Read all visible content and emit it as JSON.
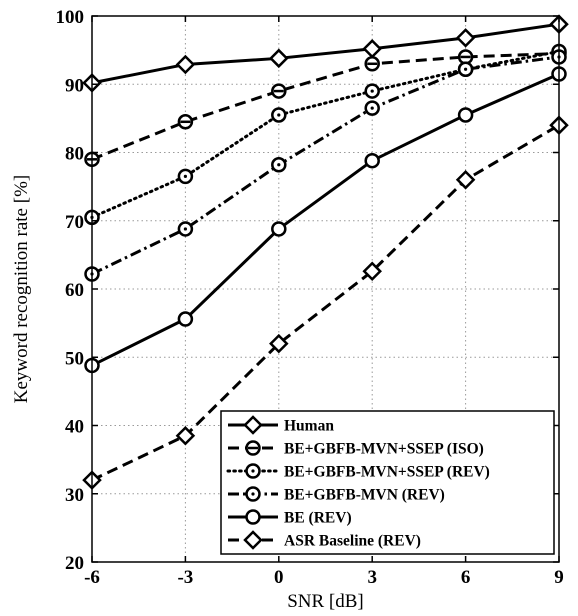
{
  "chart_data": {
    "type": "line",
    "xlabel": "SNR [dB]",
    "ylabel": "Keyword recognition rate [%]",
    "x": [
      -6,
      -3,
      0,
      3,
      6,
      9
    ],
    "xlim": [
      -6,
      9
    ],
    "ylim": [
      20,
      100
    ],
    "xticks": [
      "-6",
      "-3",
      "0",
      "3",
      "6",
      "9"
    ],
    "yticks": [
      "20",
      "30",
      "40",
      "50",
      "60",
      "70",
      "80",
      "90",
      "100"
    ],
    "grid": true,
    "legend_position": "bottom-right",
    "series": [
      {
        "name": "Human",
        "values": [
          90.2,
          92.9,
          93.8,
          95.2,
          96.8,
          98.8
        ],
        "line": "solid",
        "marker": "diamond"
      },
      {
        "name": "BE+GBFB-MVN+SSEP (ISO)",
        "values": [
          79.0,
          84.5,
          89.0,
          93.0,
          94.0,
          94.5
        ],
        "line": "dashed",
        "marker": "circle-bar"
      },
      {
        "name": "BE+GBFB-MVN+SSEP (REV)",
        "values": [
          70.5,
          76.5,
          85.5,
          89.0,
          92.2,
          94.8
        ],
        "line": "dotted",
        "marker": "circle-dot"
      },
      {
        "name": "BE+GBFB-MVN (REV)",
        "values": [
          62.2,
          68.8,
          78.2,
          86.5,
          92.2,
          94.0
        ],
        "line": "dashdot",
        "marker": "circle-dot"
      },
      {
        "name": "BE (REV)",
        "values": [
          48.8,
          55.6,
          68.8,
          78.8,
          85.5,
          91.5
        ],
        "line": "solid",
        "marker": "circle"
      },
      {
        "name": "ASR Baseline (REV)",
        "values": [
          32.0,
          38.5,
          52.0,
          62.6,
          76.0,
          84.0
        ],
        "line": "dashed",
        "marker": "diamond"
      }
    ]
  }
}
